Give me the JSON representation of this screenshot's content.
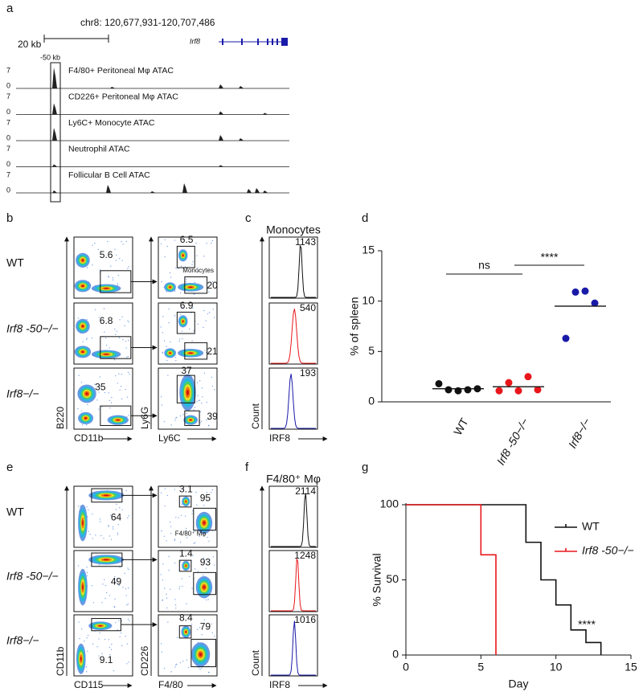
{
  "panels": {
    "a": {
      "label": "a",
      "coords": "chr8: 120,677,931-120,707,486",
      "scale": "20 kb",
      "gene": "Irf8",
      "peak": "-50 kb",
      "track_ylim": [
        0,
        7
      ],
      "tracks": [
        "F4/80+ Peritoneal Mφ ATAC",
        "CD226+ Peritoneal Mφ ATAC",
        "Ly6C+ Monocyte ATAC",
        "Neutrophil ATAC",
        "Follicular B Cell ATAC"
      ]
    },
    "b": {
      "label": "b",
      "rows": [
        "WT",
        "Irf8 -50−/−",
        "Irf8−/−"
      ],
      "row_colors": [
        "#111111",
        "#e8161b",
        "#1a1aa8"
      ],
      "gate1": [
        "5.6",
        "6.8",
        "35"
      ],
      "gate2_top": [
        "6.5",
        "6.9",
        "37"
      ],
      "gate2_bottom": [
        "20",
        "21",
        "39"
      ],
      "gate_name": "Monocytes",
      "x1": "CD11b",
      "y1": "B220",
      "x2": "Ly6C",
      "y2": "Ly6G"
    },
    "c": {
      "label": "c",
      "title": "Monocytes",
      "mfi": [
        "1143",
        "540",
        "193"
      ],
      "x": "IRF8",
      "y": "Count"
    },
    "e": {
      "label": "e",
      "gate1": [
        "64",
        "49",
        "9.1"
      ],
      "gate2_top": [
        "3.1",
        "1.4",
        "8.4"
      ],
      "gate2_bottom": [
        "95",
        "93",
        "79"
      ],
      "gate_name": "F4/80⁺ Mφ",
      "x1": "CD115",
      "y1": "CD11b",
      "x2": "F4/80",
      "y2": "CD226"
    },
    "f": {
      "label": "f",
      "title": "F4/80⁺ Mφ",
      "mfi": [
        "2114",
        "1248",
        "1016"
      ],
      "x": "IRF8",
      "y": "Count"
    }
  },
  "chart_data": [
    {
      "type": "strip",
      "label": "d",
      "y_label": "% of spleen",
      "categories": [
        "WT",
        "Irf8 -50−/−",
        "Irf8−/−"
      ],
      "colors": [
        "#111111",
        "#e8161b",
        "#1a1aa8"
      ],
      "values": [
        [
          1.8,
          1.2,
          1.1,
          1.2,
          1.3
        ],
        [
          1.1,
          1.9,
          1.1,
          2.5,
          1.2
        ],
        [
          6.3,
          10.9,
          11.0,
          9.8
        ]
      ],
      "means": [
        1.3,
        1.5,
        9.5
      ],
      "ylim": [
        0,
        15
      ],
      "yticks": [
        0,
        5,
        10,
        15
      ],
      "annotations": [
        "ns",
        "****"
      ]
    },
    {
      "type": "step",
      "label": "g",
      "x_label": "Day",
      "y_label": "% Survival",
      "series": [
        {
          "name": "WT",
          "color": "#111111",
          "x": [
            0,
            8,
            9,
            10,
            11,
            12,
            13
          ],
          "values": [
            100,
            75,
            50,
            33.3,
            16.7,
            8.3,
            0
          ]
        },
        {
          "name": "Irf8 -50−/−",
          "color": "#e8161b",
          "x": [
            0,
            5,
            6
          ],
          "values": [
            100,
            66.7,
            0
          ]
        }
      ],
      "xlim": [
        0,
        15
      ],
      "xticks": [
        0,
        5,
        10,
        15
      ],
      "ylim": [
        0,
        100
      ],
      "yticks": [
        0,
        50,
        100
      ],
      "legend": "upper right",
      "annotation": "****"
    }
  ]
}
